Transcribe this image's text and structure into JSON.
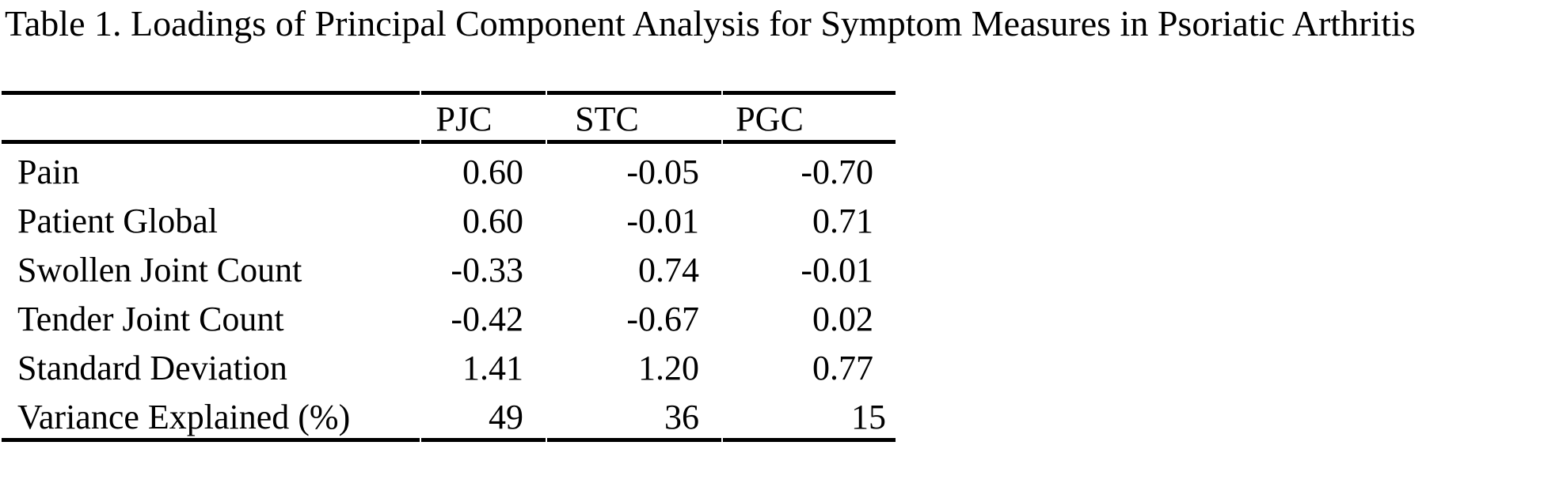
{
  "title": "Table 1. Loadings of Principal Component Analysis for Symptom Measures in Psoriatic Arthritis",
  "table": {
    "headers": [
      "PJC",
      "STC",
      "PGC"
    ],
    "rows": [
      {
        "label": "Pain",
        "values": [
          "0.60",
          "-0.05",
          "-0.70"
        ]
      },
      {
        "label": "Patient Global",
        "values": [
          "0.60",
          "-0.01",
          "0.71"
        ]
      },
      {
        "label": "Swollen Joint Count",
        "values": [
          "-0.33",
          "0.74",
          "-0.01"
        ]
      },
      {
        "label": "Tender Joint Count",
        "values": [
          "-0.42",
          "-0.67",
          "0.02"
        ]
      },
      {
        "label": "Standard Deviation",
        "values": [
          "1.41",
          "1.20",
          "0.77"
        ]
      },
      {
        "label": "Variance Explained (%)",
        "values": [
          "49",
          "36",
          "15"
        ]
      }
    ]
  },
  "colors": {
    "text": "#000000",
    "background": "#ffffff",
    "rule": "#000000"
  }
}
